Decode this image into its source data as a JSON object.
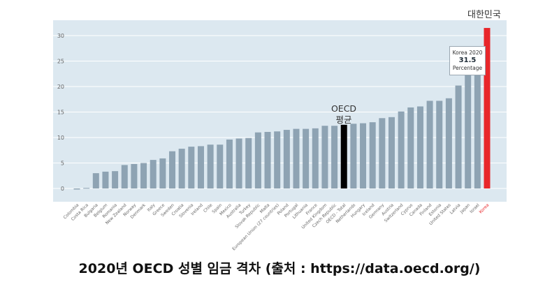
{
  "chart_data": {
    "type": "bar",
    "categories": [
      "Colombia",
      "Costa Rica",
      "Bulgaria",
      "Belgium",
      "Romania",
      "New Zealand",
      "Norway",
      "Denmark",
      "Italy",
      "Greece",
      "Sweden",
      "Croatia",
      "Slovenia",
      "Ireland",
      "Chile",
      "Spain",
      "Mexico",
      "Australia",
      "Turkey",
      "Slovak Republic",
      "Malta",
      "European Union (27 countries)",
      "Poland",
      "Portugal",
      "Lithuania",
      "France",
      "United Kingdom",
      "Czech Republic",
      "OECD - Total",
      "Netherlands",
      "Hungary",
      "Iceland",
      "Germany",
      "Austria",
      "Switzerland",
      "Cyprus",
      "Canada",
      "Finland",
      "Estonia",
      "United States",
      "Latvia",
      "Japan",
      "Israel",
      "Korea"
    ],
    "values": [
      -0.2,
      0.1,
      3.0,
      3.3,
      3.4,
      4.6,
      4.8,
      5.0,
      5.6,
      5.9,
      7.3,
      7.8,
      8.2,
      8.3,
      8.6,
      8.6,
      9.6,
      9.8,
      9.9,
      11.0,
      11.1,
      11.2,
      11.5,
      11.7,
      11.7,
      11.8,
      12.3,
      12.3,
      12.5,
      12.7,
      12.8,
      13.0,
      13.8,
      14.0,
      15.1,
      15.9,
      16.1,
      17.2,
      17.2,
      17.7,
      20.2,
      22.5,
      23.0,
      31.5
    ],
    "yticks": [
      0,
      5,
      10,
      15,
      20,
      25,
      30
    ],
    "ylim": [
      -1,
      33
    ],
    "grid": true,
    "colors": {
      "default": "#8ea3b3",
      "oecd": "#000000",
      "korea": "#e8262a",
      "plot_bg": "#dce8f0",
      "gridline": "#ffffff"
    },
    "korea_label": "대한민국",
    "oecd_label_line1": "OECD",
    "oecd_label_line2": "평균",
    "tooltip": {
      "line1": "Korea 2020",
      "value": "31.5",
      "line3": "Percentage"
    }
  },
  "caption": "2020년 OECD 성별 임금 격차 (출처 : https://data.oecd.org/)"
}
